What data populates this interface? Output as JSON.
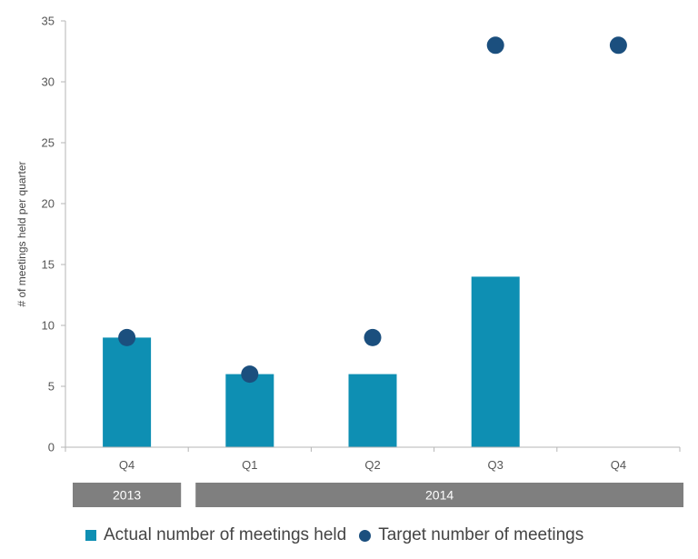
{
  "chart_data": {
    "type": "bar",
    "ylabel": "# of meetings held per quarter",
    "ylim": [
      0,
      35
    ],
    "yticks": [
      0,
      5,
      10,
      15,
      20,
      25,
      30,
      35
    ],
    "categories": [
      "Q4",
      "Q1",
      "Q2",
      "Q3",
      "Q4"
    ],
    "groups": [
      {
        "label": "2013",
        "categories": [
          "Q4"
        ]
      },
      {
        "label": "2014",
        "categories": [
          "Q1",
          "Q2",
          "Q3",
          "Q4"
        ]
      }
    ],
    "series": [
      {
        "name": "Actual number of meetings held",
        "type": "bar",
        "color": "#0e8fb3",
        "values": [
          9,
          6,
          6,
          14,
          null
        ]
      },
      {
        "name": "Target number of meetings",
        "type": "scatter",
        "color": "#1b4f7e",
        "values": [
          9,
          6,
          9,
          33,
          33
        ]
      }
    ],
    "grid": false,
    "legend_position": "bottom"
  }
}
